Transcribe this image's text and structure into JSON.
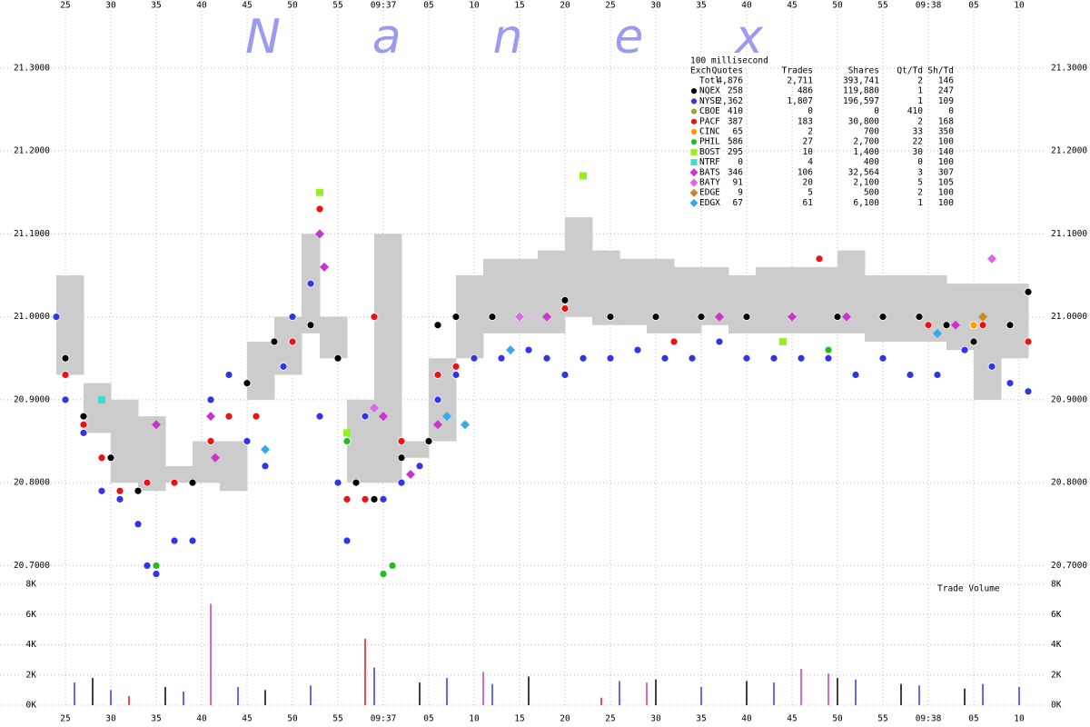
{
  "chart_data": [
    {
      "type": "scatter",
      "watermark": "N a n e x",
      "xlim": [
        17.8,
        132.8
      ],
      "xticks": [
        25,
        30,
        35,
        40,
        45,
        50,
        55,
        {
          "value": 60,
          "label": "09:37"
        },
        {
          "value": 65,
          "label": "05"
        },
        {
          "value": 70,
          "label": "10"
        },
        {
          "value": 75,
          "label": "15"
        },
        {
          "value": 80,
          "label": "20"
        },
        {
          "value": 85,
          "label": "25"
        },
        {
          "value": 90,
          "label": "30"
        },
        {
          "value": 95,
          "label": "35"
        },
        {
          "value": 100,
          "label": "40"
        },
        {
          "value": 105,
          "label": "45"
        },
        {
          "value": 110,
          "label": "50"
        },
        {
          "value": 115,
          "label": "55"
        },
        {
          "value": 120,
          "label": "09:38"
        },
        {
          "value": 125,
          "label": "05"
        },
        {
          "value": 130,
          "label": "10"
        }
      ],
      "ylim": [
        20.684,
        21.382
      ],
      "yticks": [
        {
          "value": 20.7,
          "label": "20.7000"
        },
        {
          "value": 20.8,
          "label": "20.8000"
        },
        {
          "value": 20.9,
          "label": "20.9000"
        },
        {
          "value": 21.0,
          "label": "21.0000"
        },
        {
          "value": 21.1,
          "label": "21.1000"
        },
        {
          "value": 21.2,
          "label": "21.2000"
        },
        {
          "value": 21.3,
          "label": "21.3000"
        }
      ],
      "grid": true,
      "spread": {
        "color": "#cccccc",
        "x": [
          24,
          27,
          30,
          33,
          36,
          39,
          42,
          45,
          48,
          51,
          53,
          56,
          59,
          62,
          65,
          68,
          71,
          74,
          77,
          80,
          83,
          86,
          89,
          92,
          95,
          98,
          101,
          104,
          107,
          110,
          113,
          116,
          119,
          122,
          125,
          128,
          131
        ],
        "low": [
          20.93,
          20.86,
          20.8,
          20.79,
          20.8,
          20.8,
          20.79,
          20.9,
          20.93,
          20.98,
          20.95,
          20.8,
          20.8,
          20.83,
          20.85,
          20.95,
          20.98,
          20.98,
          20.98,
          21.0,
          20.99,
          20.99,
          20.98,
          20.98,
          20.99,
          20.98,
          20.98,
          20.98,
          20.98,
          20.98,
          20.97,
          20.97,
          20.97,
          20.96,
          20.9,
          20.95,
          20.95
        ],
        "high": [
          21.05,
          20.92,
          20.9,
          20.88,
          20.82,
          20.85,
          20.85,
          20.97,
          21.0,
          21.1,
          21.0,
          20.9,
          21.1,
          20.85,
          20.95,
          21.05,
          21.07,
          21.07,
          21.08,
          21.12,
          21.08,
          21.07,
          21.07,
          21.06,
          21.06,
          21.05,
          21.06,
          21.06,
          21.06,
          21.08,
          21.05,
          21.05,
          21.05,
          21.04,
          21.04,
          21.04,
          21.04
        ]
      },
      "legend_table": {
        "caption": "100 millisecond",
        "columns": [
          "Exch",
          "Quotes",
          "Trades",
          "Shares",
          "Qt/Td",
          "Sh/Td"
        ],
        "total": {
          "name": "Totl",
          "stats": [
            "4,876",
            "2,711",
            "393,741",
            "2",
            "146"
          ]
        }
      },
      "series": [
        {
          "name": "NQEX",
          "color": "#000000",
          "marker": "circle",
          "stats": [
            "258",
            "486",
            "119,880",
            "1",
            "247"
          ],
          "x": [
            25,
            27,
            30,
            33,
            37,
            39,
            41,
            45,
            48,
            52,
            55,
            57,
            59,
            62,
            65,
            66,
            68,
            72,
            75,
            80,
            85,
            90,
            95,
            100,
            105,
            110,
            115,
            119,
            122,
            125,
            129,
            131
          ],
          "values": [
            20.95,
            20.88,
            20.83,
            20.79,
            20.8,
            20.8,
            20.85,
            20.92,
            20.97,
            20.99,
            20.95,
            20.8,
            20.78,
            20.83,
            20.85,
            20.99,
            21.0,
            21.0,
            21.0,
            21.02,
            21.0,
            21.0,
            21.0,
            21.0,
            21.0,
            21.0,
            21.0,
            21.0,
            20.99,
            20.97,
            20.99,
            21.03
          ]
        },
        {
          "name": "NYSE",
          "color": "#3333ee",
          "marker": "circle",
          "stats": [
            "2,362",
            "1,807",
            "196,597",
            "1",
            "109"
          ],
          "x": [
            24,
            25,
            27,
            29,
            31,
            33,
            34,
            35,
            37,
            39,
            41,
            43,
            45,
            47,
            49,
            50,
            52,
            53,
            55,
            56,
            58,
            60,
            62,
            64,
            66,
            68,
            70,
            73,
            76,
            78,
            80,
            82,
            85,
            88,
            91,
            94,
            97,
            100,
            103,
            106,
            109,
            112,
            115,
            118,
            121,
            124,
            127,
            129,
            131
          ],
          "values": [
            21.0,
            20.9,
            20.86,
            20.79,
            20.78,
            20.75,
            20.7,
            20.69,
            20.73,
            20.73,
            20.9,
            20.93,
            20.85,
            20.82,
            20.94,
            21.0,
            21.04,
            20.88,
            20.8,
            20.73,
            20.88,
            20.78,
            20.8,
            20.82,
            20.9,
            20.93,
            20.95,
            20.95,
            20.96,
            20.95,
            20.93,
            20.95,
            20.95,
            20.96,
            20.95,
            20.95,
            20.97,
            20.95,
            20.95,
            20.95,
            20.95,
            20.93,
            20.95,
            20.93,
            20.93,
            20.96,
            20.94,
            20.92,
            20.91
          ]
        },
        {
          "name": "CBOE",
          "color": "#99aa22",
          "marker": "circle",
          "stats": [
            "410",
            "0",
            "0",
            "410",
            "0"
          ],
          "x": [],
          "values": []
        },
        {
          "name": "PACF",
          "color": "#ee1111",
          "marker": "circle",
          "stats": [
            "387",
            "183",
            "30,800",
            "2",
            "168"
          ],
          "x": [
            25,
            27,
            29,
            31,
            34,
            37,
            41,
            43,
            46,
            50,
            53,
            56,
            58,
            59,
            62,
            66,
            68,
            80,
            92,
            108,
            120,
            126,
            131
          ],
          "values": [
            20.93,
            20.87,
            20.83,
            20.79,
            20.8,
            20.8,
            20.85,
            20.88,
            20.88,
            20.97,
            21.13,
            20.78,
            20.78,
            21.0,
            20.85,
            20.93,
            20.94,
            21.01,
            20.97,
            21.07,
            20.99,
            20.99,
            20.97
          ]
        },
        {
          "name": "CINC",
          "color": "#ff9900",
          "marker": "circle",
          "stats": [
            "65",
            "2",
            "700",
            "33",
            "350"
          ],
          "x": [
            125
          ],
          "values": [
            20.99
          ]
        },
        {
          "name": "PHIL",
          "color": "#22bb22",
          "marker": "circle",
          "stats": [
            "586",
            "27",
            "2,700",
            "22",
            "100"
          ],
          "x": [
            35,
            56,
            60,
            61,
            109
          ],
          "values": [
            20.7,
            20.85,
            20.69,
            20.7,
            20.96
          ]
        },
        {
          "name": "BOST",
          "color": "#99ee22",
          "marker": "square",
          "stats": [
            "295",
            "10",
            "1,400",
            "30",
            "140"
          ],
          "x": [
            53,
            56,
            82,
            104
          ],
          "values": [
            21.15,
            20.86,
            21.17,
            20.97
          ]
        },
        {
          "name": "NTRF",
          "color": "#44ddcc",
          "marker": "square",
          "stats": [
            "0",
            "4",
            "400",
            "0",
            "100"
          ],
          "x": [
            29
          ],
          "values": [
            20.9
          ]
        },
        {
          "name": "BATS",
          "color": "#cc33cc",
          "marker": "diamond",
          "stats": [
            "346",
            "106",
            "32,564",
            "3",
            "307"
          ],
          "x": [
            35,
            41,
            41.5,
            53,
            53.5,
            60,
            63,
            66,
            78,
            97,
            105,
            111,
            123
          ],
          "values": [
            20.87,
            20.88,
            20.83,
            21.1,
            21.06,
            20.88,
            20.81,
            20.87,
            21.0,
            21.0,
            21.0,
            21.0,
            20.99
          ]
        },
        {
          "name": "BATY",
          "color": "#dd66ee",
          "marker": "diamond",
          "stats": [
            "91",
            "20",
            "2,100",
            "5",
            "105"
          ],
          "x": [
            59,
            75,
            127
          ],
          "values": [
            20.89,
            21.0,
            21.07
          ]
        },
        {
          "name": "EDGE",
          "color": "#cc8822",
          "marker": "diamond",
          "stats": [
            "9",
            "5",
            "500",
            "2",
            "100"
          ],
          "x": [
            126
          ],
          "values": [
            21.0
          ]
        },
        {
          "name": "EDGX",
          "color": "#33aaee",
          "marker": "diamond",
          "stats": [
            "67",
            "61",
            "6,100",
            "1",
            "100"
          ],
          "x": [
            47,
            67,
            69,
            74,
            121
          ],
          "values": [
            20.84,
            20.88,
            20.87,
            20.96,
            20.98
          ]
        }
      ]
    },
    {
      "type": "bar",
      "label": "Trade Volume",
      "xlim": [
        17.8,
        132.8
      ],
      "xticks": [
        25,
        30,
        35,
        40,
        45,
        50,
        55,
        {
          "value": 60,
          "label": "09:37"
        },
        {
          "value": 65,
          "label": "05"
        },
        {
          "value": 70,
          "label": "10"
        },
        {
          "value": 75,
          "label": "15"
        },
        {
          "value": 80,
          "label": "20"
        },
        {
          "value": 85,
          "label": "25"
        },
        {
          "value": 90,
          "label": "30"
        },
        {
          "value": 95,
          "label": "35"
        },
        {
          "value": 100,
          "label": "40"
        },
        {
          "value": 105,
          "label": "45"
        },
        {
          "value": 110,
          "label": "50"
        },
        {
          "value": 115,
          "label": "55"
        },
        {
          "value": 120,
          "label": "09:38"
        },
        {
          "value": 125,
          "label": "05"
        },
        {
          "value": 130,
          "label": "10"
        }
      ],
      "ylim": [
        0,
        8000
      ],
      "yticks": [
        {
          "value": 0,
          "label": "0K"
        },
        {
          "value": 2000,
          "label": "2K"
        },
        {
          "value": 4000,
          "label": "4K"
        },
        {
          "value": 6000,
          "label": "6K"
        },
        {
          "value": 8000,
          "label": "8K"
        }
      ],
      "grid": true,
      "series": [
        {
          "color": "#3333ee",
          "x": [
            26,
            30,
            38,
            44,
            52,
            59,
            67,
            72,
            86,
            95,
            103,
            112,
            119,
            126,
            130
          ],
          "values": [
            1500,
            1000,
            900,
            1200,
            1300,
            2500,
            1800,
            1400,
            1600,
            1200,
            1500,
            1700,
            1300,
            1400,
            1200
          ]
        },
        {
          "color": "#000000",
          "x": [
            28,
            36,
            47,
            64,
            76,
            90,
            100,
            110,
            117,
            124
          ],
          "values": [
            1800,
            1200,
            1000,
            1500,
            1900,
            1700,
            1600,
            1800,
            1400,
            1100
          ]
        },
        {
          "color": "#ee1111",
          "x": [
            32,
            58,
            84
          ],
          "values": [
            600,
            4400,
            500
          ]
        },
        {
          "color": "#cc33cc",
          "x": [
            41,
            71,
            89,
            106,
            109
          ],
          "values": [
            6700,
            2200,
            1500,
            2400,
            2100
          ]
        }
      ]
    }
  ]
}
